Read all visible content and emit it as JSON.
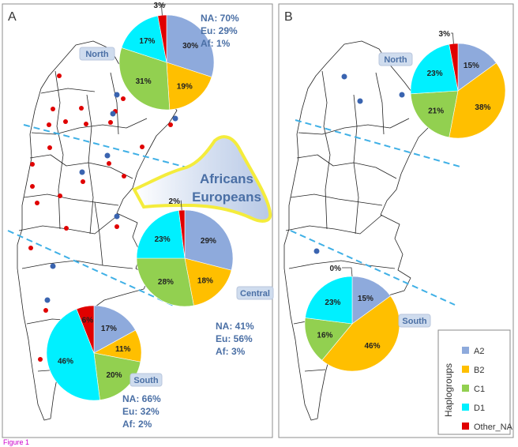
{
  "figure": {
    "caption": "Figure 1",
    "panels": [
      {
        "letter": "A"
      },
      {
        "letter": "B"
      }
    ],
    "arrow_label": {
      "line1": "Africans",
      "line2": "Europeans"
    },
    "ancestry": {
      "north": [
        "NA: 70%",
        "Eu: 29%",
        "Af: 1%"
      ],
      "central": [
        "NA: 41%",
        "Eu: 56%",
        "Af: 3%"
      ],
      "south": [
        "NA: 66%",
        "Eu: 32%",
        "Af: 2%"
      ]
    },
    "legend": {
      "title": "Haplogroups",
      "items": [
        {
          "label": "A2",
          "color": "#8eaadc"
        },
        {
          "label": "B2",
          "color": "#ffbf00"
        },
        {
          "label": "C1",
          "color": "#92d050"
        },
        {
          "label": "D1",
          "color": "#00f0ff"
        },
        {
          "label": "Other_NA",
          "color": "#e00000"
        }
      ]
    },
    "colors": {
      "dashed_line": "#3fb0e6",
      "label_text": "#4a6fa5",
      "region_box": "#cfdcee",
      "sample_red": "#e00000",
      "sample_blue": "#3a64b0"
    }
  },
  "chart_data": [
    {
      "type": "pie",
      "panel": "A",
      "region": "North",
      "categories": [
        "A2",
        "B2",
        "C1",
        "D1",
        "Other_NA"
      ],
      "values": [
        30,
        19,
        31,
        17,
        3
      ],
      "labels": [
        "30%",
        "19%",
        "31%",
        "17%",
        "3%"
      ]
    },
    {
      "type": "pie",
      "panel": "A",
      "region": "Central",
      "categories": [
        "A2",
        "B2",
        "C1",
        "D1",
        "Other_NA"
      ],
      "values": [
        29,
        18,
        28,
        23,
        2
      ],
      "labels": [
        "29%",
        "18%",
        "28%",
        "23%",
        "2%"
      ]
    },
    {
      "type": "pie",
      "panel": "A",
      "region": "South",
      "categories": [
        "A2",
        "B2",
        "C1",
        "D1",
        "Other_NA"
      ],
      "values": [
        17,
        11,
        20,
        46,
        6
      ],
      "labels": [
        "17%",
        "11%",
        "20%",
        "46%",
        "6%"
      ]
    },
    {
      "type": "pie",
      "panel": "B",
      "region": "North",
      "categories": [
        "A2",
        "B2",
        "C1",
        "D1",
        "Other_NA"
      ],
      "values": [
        15,
        38,
        21,
        23,
        3
      ],
      "labels": [
        "15%",
        "38%",
        "21%",
        "23%",
        "3%"
      ]
    },
    {
      "type": "pie",
      "panel": "B",
      "region": "South",
      "categories": [
        "A2",
        "B2",
        "C1",
        "D1",
        "Other_NA"
      ],
      "values": [
        15,
        46,
        16,
        23,
        0
      ],
      "labels": [
        "15%",
        "46%",
        "16%",
        "23%",
        "0%"
      ]
    }
  ]
}
